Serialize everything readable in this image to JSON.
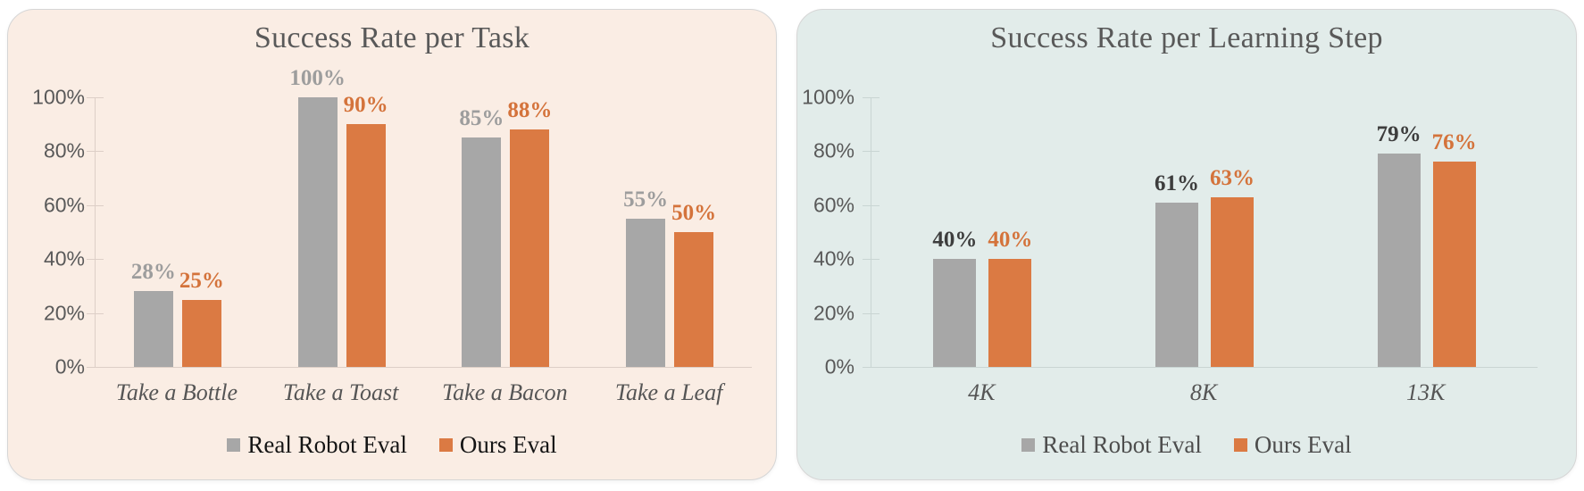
{
  "chart_data": [
    {
      "type": "bar",
      "title": "Success Rate per Task",
      "categories": [
        "Take a Bottle",
        "Take a Toast",
        "Take a Bacon",
        "Take a Leaf"
      ],
      "series": [
        {
          "name": "Real Robot Eval",
          "color": "#a7a7a7",
          "label_color": "#9d9d9d",
          "values": [
            28,
            100,
            85,
            55
          ],
          "labels": [
            "28%",
            "100%",
            "85%",
            "55%"
          ]
        },
        {
          "name": "Ours Eval",
          "color": "#db7a43",
          "label_color": "#d4733b",
          "values": [
            25,
            90,
            88,
            50
          ],
          "labels": [
            "25%",
            "90%",
            "88%",
            "50%"
          ]
        }
      ],
      "y_ticks": [
        "100%",
        "80%",
        "60%",
        "40%",
        "20%",
        "0%"
      ],
      "ylim": [
        0,
        100
      ],
      "grid": false,
      "legend_position": "bottom",
      "panel_bg": "#faede4",
      "axis_color": "#ddcfc7",
      "legend_text_color": "#141414"
    },
    {
      "type": "bar",
      "title": "Success Rate per Learning Step",
      "categories": [
        "4K",
        "8K",
        "13K"
      ],
      "series": [
        {
          "name": "Real Robot Eval",
          "color": "#a7a7a7",
          "label_color": "#3d3d3d",
          "values": [
            40,
            61,
            79
          ],
          "labels": [
            "40%",
            "61%",
            "79%"
          ]
        },
        {
          "name": "Ours Eval",
          "color": "#db7a43",
          "label_color": "#d4733b",
          "values": [
            40,
            63,
            76
          ],
          "labels": [
            "40%",
            "63%",
            "76%"
          ]
        }
      ],
      "y_ticks": [
        "100%",
        "80%",
        "60%",
        "40%",
        "20%",
        "0%"
      ],
      "ylim": [
        0,
        100
      ],
      "grid": false,
      "legend_position": "bottom",
      "panel_bg": "#e2ecea",
      "axis_color": "#c9d5d3",
      "legend_text_color": "#4d4d4d"
    }
  ]
}
